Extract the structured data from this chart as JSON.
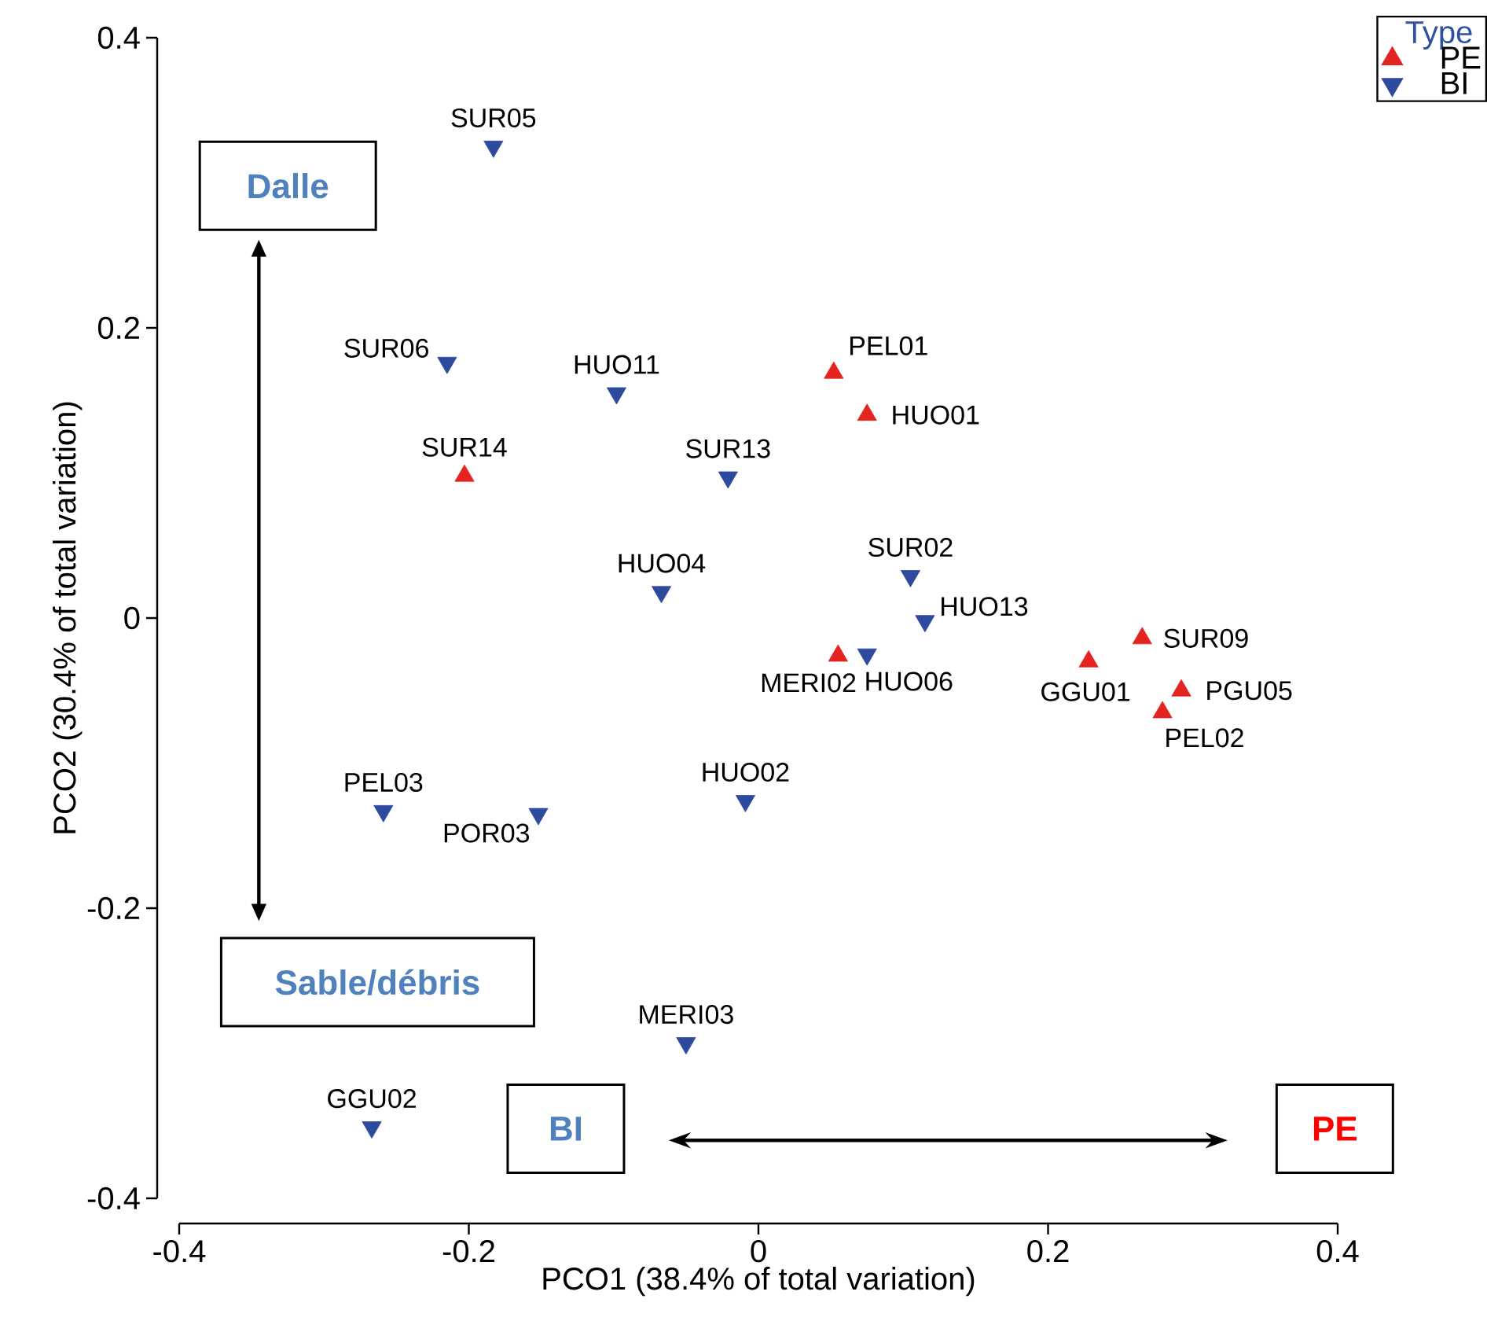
{
  "chart_data": {
    "type": "scatter",
    "xlabel": "PCO1 (38.4% of total variation)",
    "ylabel": "PCO2 (30.4% of total variation)",
    "legend_title": "Type",
    "legend": "top right",
    "marker": "triangle",
    "xlim": [
      -0.4,
      0.4
    ],
    "ylim": [
      -0.4,
      0.4
    ],
    "xticks": [
      -0.4,
      -0.2,
      0,
      0.2,
      0.4
    ],
    "yticks": [
      -0.4,
      -0.2,
      0,
      0.2,
      0.4
    ],
    "series": [
      {
        "name": "PE",
        "color": "#e32420",
        "x": [
          0.052,
          0.075,
          -0.203,
          0.055,
          0.228,
          0.265,
          0.292,
          0.279
        ],
        "values": [
          0.169,
          0.14,
          0.098,
          -0.026,
          -0.03,
          -0.014,
          -0.05,
          -0.065
        ]
      },
      {
        "name": "BI",
        "color": "#2e4a9e",
        "x": [
          -0.183,
          -0.215,
          -0.098,
          -0.021,
          -0.067,
          0.105,
          0.115,
          0.075,
          -0.009,
          -0.259,
          -0.152,
          -0.05,
          -0.267
        ],
        "values": [
          0.325,
          0.176,
          0.155,
          0.097,
          0.018,
          0.029,
          -0.002,
          -0.025,
          -0.126,
          -0.133,
          -0.135,
          -0.293,
          -0.351
        ]
      }
    ],
    "annotations": [
      {
        "text": "PEL01",
        "x": 0.052,
        "y": 0.169
      },
      {
        "text": "HUO01",
        "x": 0.075,
        "y": 0.14
      },
      {
        "text": "SUR14",
        "x": -0.203,
        "y": 0.098
      },
      {
        "text": "MERI02",
        "x": 0.055,
        "y": -0.026
      },
      {
        "text": "GGU01",
        "x": 0.228,
        "y": -0.03
      },
      {
        "text": "SUR09",
        "x": 0.265,
        "y": -0.014
      },
      {
        "text": "PGU05",
        "x": 0.292,
        "y": -0.05
      },
      {
        "text": "PEL02",
        "x": 0.279,
        "y": -0.065
      },
      {
        "text": "SUR05",
        "x": -0.183,
        "y": 0.325
      },
      {
        "text": "SUR06",
        "x": -0.215,
        "y": 0.176
      },
      {
        "text": "HUO11",
        "x": -0.098,
        "y": 0.155
      },
      {
        "text": "SUR13",
        "x": -0.021,
        "y": 0.097
      },
      {
        "text": "HUO04",
        "x": -0.067,
        "y": 0.018
      },
      {
        "text": "SUR02",
        "x": 0.105,
        "y": 0.029
      },
      {
        "text": "HUO13",
        "x": 0.115,
        "y": -0.002
      },
      {
        "text": "HUO06",
        "x": 0.075,
        "y": -0.025
      },
      {
        "text": "HUO02",
        "x": -0.009,
        "y": -0.126
      },
      {
        "text": "PEL03",
        "x": -0.259,
        "y": -0.133
      },
      {
        "text": "POR03",
        "x": -0.152,
        "y": -0.135
      },
      {
        "text": "MERI03",
        "x": -0.05,
        "y": -0.293
      },
      {
        "text": "GGU02",
        "x": -0.267,
        "y": -0.351
      },
      "Dalle",
      "Sable/débris",
      "BI",
      "PE"
    ]
  }
}
